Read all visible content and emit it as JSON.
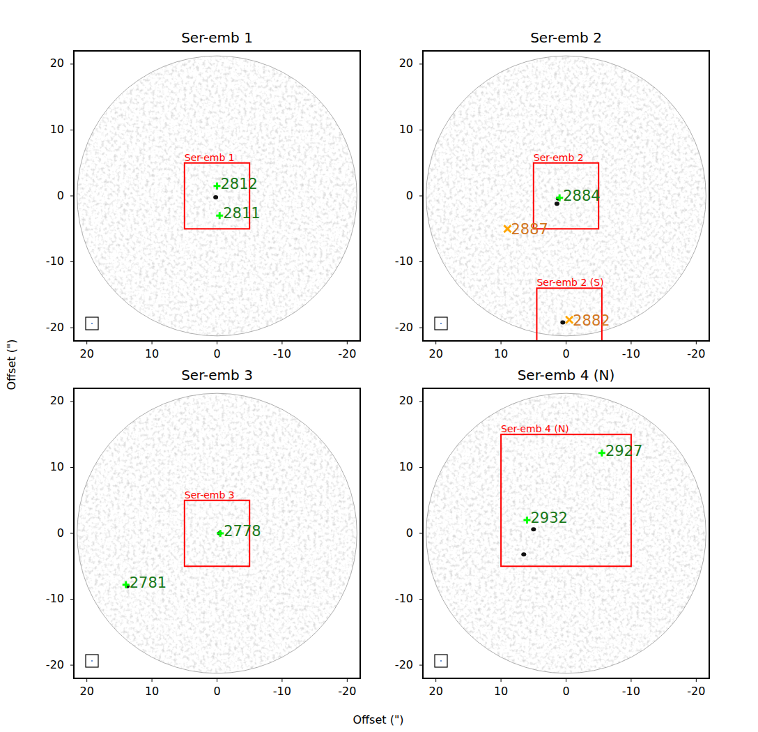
{
  "chart_data": {
    "type": "image_grid",
    "xlabel": "Offset (\")",
    "ylabel": "Offset (\")",
    "panels": [
      {
        "type": "scatter",
        "title": "Ser-emb 1",
        "xlim": [
          22,
          -22
        ],
        "ylim": [
          -22,
          22
        ],
        "xticks": [
          20,
          10,
          0,
          -10,
          -20
        ],
        "yticks": [
          -20,
          -10,
          0,
          10,
          20
        ],
        "field_radius": 21.5,
        "regions": [
          {
            "label": "Ser-emb 1",
            "x": [
              5,
              -5
            ],
            "y": [
              -5,
              5
            ],
            "color": "#ff0000"
          }
        ],
        "sources": [
          {
            "x": 0.2,
            "y": -0.2
          }
        ],
        "points": [
          {
            "label": "2812",
            "x": 0,
            "y": 1.5,
            "marker": "plus",
            "color": "#00ff00"
          },
          {
            "label": "2811",
            "x": -0.4,
            "y": -3,
            "marker": "plus",
            "color": "#00ff00"
          }
        ]
      },
      {
        "type": "scatter",
        "title": "Ser-emb 2",
        "xlim": [
          22,
          -22
        ],
        "ylim": [
          -22,
          22
        ],
        "xticks": [
          20,
          10,
          0,
          -10,
          -20
        ],
        "yticks": [
          -20,
          -10,
          0,
          10,
          20
        ],
        "field_radius": 21.5,
        "regions": [
          {
            "label": "Ser-emb 2",
            "x": [
              5,
              -5
            ],
            "y": [
              -5,
              5
            ],
            "color": "#ff0000"
          },
          {
            "label": "Ser-emb 2 (S)",
            "x": [
              4.5,
              -5.5
            ],
            "y": [
              -22,
              -14
            ],
            "color": "#ff0000"
          }
        ],
        "sources": [
          {
            "x": 1.2,
            "y": -0.4
          },
          {
            "x": 1.4,
            "y": -1.2
          },
          {
            "x": 0.5,
            "y": -19.2
          }
        ],
        "points": [
          {
            "label": "2884",
            "x": 1,
            "y": -0.3,
            "marker": "plus",
            "color": "#00ff00"
          },
          {
            "label": "2887",
            "x": 9,
            "y": -5,
            "marker": "x",
            "color": "#ffa500"
          },
          {
            "label": "2882",
            "x": -0.5,
            "y": -18.8,
            "marker": "x",
            "color": "#ffa500"
          }
        ]
      },
      {
        "type": "scatter",
        "title": "Ser-emb 3",
        "xlim": [
          22,
          -22
        ],
        "ylim": [
          -22,
          22
        ],
        "xticks": [
          20,
          10,
          0,
          -10,
          -20
        ],
        "yticks": [
          -20,
          -10,
          0,
          10,
          20
        ],
        "field_radius": 21.5,
        "regions": [
          {
            "label": "Ser-emb 3",
            "x": [
              5,
              -5
            ],
            "y": [
              -5,
              5
            ],
            "color": "#ff0000"
          }
        ],
        "sources": [
          {
            "x": 13.8,
            "y": -8
          },
          {
            "x": -0.4,
            "y": 0
          }
        ],
        "points": [
          {
            "label": "2778",
            "x": -0.5,
            "y": 0,
            "marker": "plus",
            "color": "#00ff00"
          },
          {
            "label": "2781",
            "x": 14,
            "y": -7.8,
            "marker": "plus",
            "color": "#00ff00"
          }
        ]
      },
      {
        "type": "scatter",
        "title": "Ser-emb 4 (N)",
        "xlim": [
          22,
          -22
        ],
        "ylim": [
          -22,
          22
        ],
        "xticks": [
          20,
          10,
          0,
          -10,
          -20
        ],
        "yticks": [
          -20,
          -10,
          0,
          10,
          20
        ],
        "field_radius": 21.5,
        "regions": [
          {
            "label": "Ser-emb 4 (N)",
            "x": [
              10,
              -10
            ],
            "y": [
              -5,
              15
            ],
            "color": "#ff0000"
          }
        ],
        "sources": [
          {
            "x": 5,
            "y": 0.6
          },
          {
            "x": 6.5,
            "y": -3.2
          }
        ],
        "points": [
          {
            "label": "2932",
            "x": 6,
            "y": 2,
            "marker": "plus",
            "color": "#00ff00"
          },
          {
            "label": "2927",
            "x": -5.5,
            "y": 12.2,
            "marker": "plus",
            "color": "#00ff00"
          }
        ]
      }
    ]
  }
}
